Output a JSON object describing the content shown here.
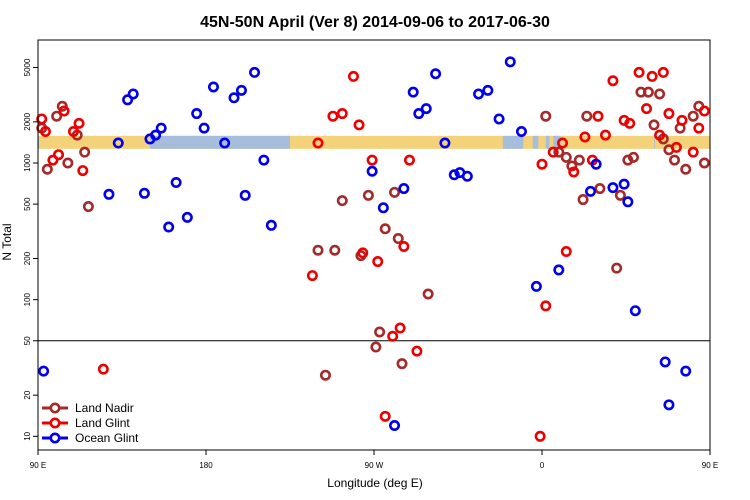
{
  "chart_data": {
    "type": "scatter",
    "title": "45N-50N April (Ver 8)   2014-09-06 to 2017-06-30",
    "xlabel": "Longitude (deg E)",
    "ylabel": "N Total",
    "x_scale": "linear",
    "y_scale": "log",
    "xlim": [
      90,
      450
    ],
    "ylim": [
      7.94,
      7943
    ],
    "x_ticks": [
      {
        "value": 90,
        "label": "90 E"
      },
      {
        "value": 180,
        "label": "180"
      },
      {
        "value": 270,
        "label": "90 W"
      },
      {
        "value": 360,
        "label": "0"
      },
      {
        "value": 450,
        "label": "90 E"
      },
      {
        "value": 540,
        "label": "180"
      }
    ],
    "y_ticks": [
      10,
      20,
      50,
      100,
      200,
      500,
      1000,
      2000,
      5000
    ],
    "threshold_line": 50,
    "land_ocean_band": {
      "y_range": [
        1270,
        1580
      ],
      "land_color": "#f4d27a",
      "ocean_color": "#a6bddb",
      "ocean_segments_lon": [
        [
          90,
          90.5
        ],
        [
          150,
          225
        ],
        [
          339,
          350
        ],
        [
          355,
          358
        ],
        [
          362,
          364
        ],
        [
          366,
          370
        ],
        [
          420,
          420.4
        ],
        [
          460,
          460.3
        ],
        [
          480,
          490
        ],
        [
          515,
          540
        ]
      ]
    },
    "legend": {
      "position": "bottom-left",
      "entries": [
        {
          "name": "Land Nadir",
          "color": "#a52a2a"
        },
        {
          "name": "Land Glint",
          "color": "#ee0000"
        },
        {
          "name": "Ocean Glint",
          "color": "#0000ee"
        }
      ]
    },
    "series": [
      {
        "name": "Land Nadir",
        "color": "#a52a2a",
        "points": [
          [
            92,
            1800
          ],
          [
            95,
            900
          ],
          [
            100,
            2200
          ],
          [
            103,
            2600
          ],
          [
            106,
            1000
          ],
          [
            111,
            1600
          ],
          [
            115,
            1200
          ],
          [
            117,
            480
          ],
          [
            240,
            230
          ],
          [
            249,
            230
          ],
          [
            244,
            28
          ],
          [
            253,
            530
          ],
          [
            263,
            210
          ],
          [
            267,
            580
          ],
          [
            271,
            45
          ],
          [
            273,
            58
          ],
          [
            276,
            330
          ],
          [
            281,
            610
          ],
          [
            283,
            280
          ],
          [
            285,
            34
          ],
          [
            299,
            110
          ],
          [
            362,
            2200
          ],
          [
            369,
            1200
          ],
          [
            373,
            1100
          ],
          [
            376,
            950
          ],
          [
            380,
            1050
          ],
          [
            382,
            540
          ],
          [
            384,
            2200
          ],
          [
            391,
            650
          ],
          [
            400,
            170
          ],
          [
            402,
            580
          ],
          [
            406,
            1050
          ],
          [
            409,
            1100
          ],
          [
            413,
            3300
          ],
          [
            417,
            3300
          ],
          [
            420,
            1900
          ],
          [
            423,
            3200
          ],
          [
            425,
            1500
          ],
          [
            428,
            1250
          ],
          [
            431,
            1050
          ],
          [
            434,
            1800
          ],
          [
            437,
            900
          ],
          [
            441,
            2200
          ],
          [
            444,
            2600
          ],
          [
            447,
            1000
          ],
          [
            452,
            1600
          ],
          [
            456,
            1200
          ],
          [
            458,
            480
          ]
        ]
      },
      {
        "name": "Land Glint",
        "color": "#ee0000",
        "points": [
          [
            92,
            2100
          ],
          [
            94,
            1700
          ],
          [
            98,
            1050
          ],
          [
            101,
            1150
          ],
          [
            104,
            2400
          ],
          [
            109,
            1700
          ],
          [
            112,
            1950
          ],
          [
            114,
            880
          ],
          [
            125,
            31
          ],
          [
            237,
            150
          ],
          [
            240,
            1400
          ],
          [
            248,
            2200
          ],
          [
            253,
            2300
          ],
          [
            259,
            4300
          ],
          [
            262,
            1900
          ],
          [
            264,
            220
          ],
          [
            269,
            1050
          ],
          [
            272,
            190
          ],
          [
            276,
            14
          ],
          [
            280,
            54
          ],
          [
            284,
            62
          ],
          [
            286,
            245
          ],
          [
            289,
            1050
          ],
          [
            293,
            42
          ],
          [
            359,
            10
          ],
          [
            360,
            980
          ],
          [
            362,
            90
          ],
          [
            366,
            1200
          ],
          [
            371,
            1400
          ],
          [
            373,
            225
          ],
          [
            377,
            860
          ],
          [
            383,
            1550
          ],
          [
            387,
            1050
          ],
          [
            390,
            2200
          ],
          [
            394,
            1600
          ],
          [
            398,
            4000
          ],
          [
            404,
            2050
          ],
          [
            407,
            1950
          ],
          [
            412,
            4600
          ],
          [
            416,
            2500
          ],
          [
            419,
            4300
          ],
          [
            423,
            1600
          ],
          [
            425,
            4600
          ],
          [
            428,
            2300
          ],
          [
            432,
            1300
          ],
          [
            435,
            2050
          ],
          [
            441,
            1200
          ],
          [
            444,
            1800
          ],
          [
            447,
            2400
          ],
          [
            453,
            1700
          ],
          [
            456,
            1950
          ],
          [
            458,
            880
          ],
          [
            463,
            31
          ]
        ]
      },
      {
        "name": "Ocean Glint",
        "color": "#0000ee",
        "points": [
          [
            93,
            30
          ],
          [
            128,
            590
          ],
          [
            133,
            1400
          ],
          [
            138,
            2900
          ],
          [
            141,
            3200
          ],
          [
            147,
            600
          ],
          [
            150,
            1500
          ],
          [
            153,
            1600
          ],
          [
            156,
            1800
          ],
          [
            160,
            340
          ],
          [
            164,
            720
          ],
          [
            170,
            400
          ],
          [
            175,
            2300
          ],
          [
            179,
            1800
          ],
          [
            184,
            3600
          ],
          [
            190,
            1400
          ],
          [
            195,
            3000
          ],
          [
            199,
            3400
          ],
          [
            201,
            580
          ],
          [
            206,
            4600
          ],
          [
            211,
            1050
          ],
          [
            215,
            350
          ],
          [
            269,
            870
          ],
          [
            275,
            470
          ],
          [
            281,
            12
          ],
          [
            286,
            650
          ],
          [
            291,
            3300
          ],
          [
            294,
            2300
          ],
          [
            298,
            2500
          ],
          [
            303,
            4500
          ],
          [
            308,
            1400
          ],
          [
            313,
            820
          ],
          [
            316,
            850
          ],
          [
            320,
            800
          ],
          [
            326,
            3200
          ],
          [
            331,
            3400
          ],
          [
            337,
            2100
          ],
          [
            343,
            5500
          ],
          [
            349,
            1700
          ],
          [
            357,
            125
          ],
          [
            369,
            165
          ],
          [
            386,
            620
          ],
          [
            389,
            980
          ],
          [
            398,
            660
          ],
          [
            404,
            700
          ],
          [
            406,
            520
          ],
          [
            410,
            83
          ],
          [
            426,
            35
          ],
          [
            428,
            17
          ],
          [
            437,
            30
          ],
          [
            473,
            590
          ]
        ]
      }
    ]
  }
}
